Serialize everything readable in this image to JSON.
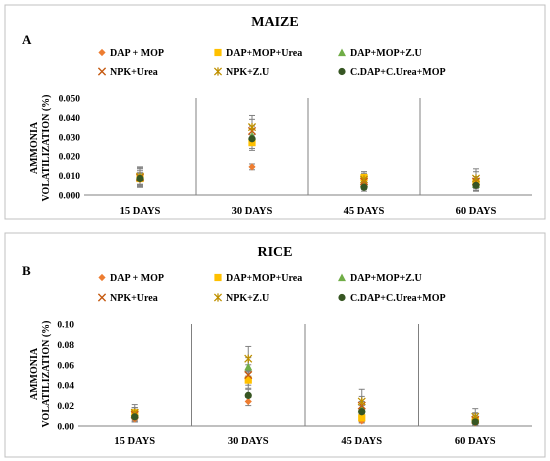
{
  "colors": {
    "DAP + MOP": "#ed7d31",
    "DAP+MOP+Urea": "#ffc000",
    "DAP+MOP+Z.U": "#70ad47",
    "NPK+Urea": "#c55a11",
    "NPK+Z.U": "#bf9000",
    "C.DAP+C.Urea+MOP": "#375623",
    "error_bar": "#808080",
    "frame": "#c0c0c0",
    "divider": "#808080"
  },
  "chart_data": [
    {
      "type": "scatter",
      "panel_letter": "A",
      "title": "MAIZE",
      "ylabel": [
        "AMMONIA",
        "VOLATILIZATION (%)"
      ],
      "categories": [
        "15 DAYS",
        "30 DAYS",
        "45 DAYS",
        "60 DAYS"
      ],
      "ylim": [
        0,
        0.05
      ],
      "yticks": [
        "0.000",
        "0.010",
        "0.020",
        "0.030",
        "0.040",
        "0.050"
      ],
      "legend_position": "top",
      "series": [
        {
          "name": "DAP + MOP",
          "marker": "diamond",
          "values": [
            0.008,
            0.0145,
            0.005,
            0.006
          ],
          "errors": [
            0.003,
            0.0015,
            0.002,
            0.002
          ]
        },
        {
          "name": "DAP+MOP+Urea",
          "marker": "square",
          "values": [
            0.0085,
            0.027,
            0.009,
            0.0065
          ],
          "errors": [
            0.003,
            0.004,
            0.003,
            0.003
          ]
        },
        {
          "name": "DAP+MOP+Z.U",
          "marker": "triangle",
          "values": [
            0.0095,
            0.0305,
            0.006,
            0.0055
          ],
          "errors": [
            0.004,
            0.005,
            0.003,
            0.003
          ]
        },
        {
          "name": "NPK+Urea",
          "marker": "x",
          "values": [
            0.009,
            0.033,
            0.007,
            0.007
          ],
          "errors": [
            0.005,
            0.006,
            0.004,
            0.005
          ]
        },
        {
          "name": "NPK+Z.U",
          "marker": "star",
          "values": [
            0.0095,
            0.035,
            0.008,
            0.0085
          ],
          "errors": [
            0.005,
            0.006,
            0.004,
            0.005
          ]
        },
        {
          "name": "C.DAP+C.Urea+MOP",
          "marker": "circle",
          "values": [
            0.0085,
            0.029,
            0.004,
            0.005
          ],
          "errors": [
            0.004,
            0.005,
            0.002,
            0.003
          ]
        }
      ]
    },
    {
      "type": "scatter",
      "panel_letter": "B",
      "title": "RICE",
      "ylabel": [
        "AMMONIA",
        "VOLATILIZATION (%)"
      ],
      "categories": [
        "15 DAYS",
        "30 DAYS",
        "45 DAYS",
        "60 DAYS"
      ],
      "ylim": [
        0,
        0.1
      ],
      "yticks": [
        "0.00",
        "0.02",
        "0.04",
        "0.06",
        "0.08",
        "0.10"
      ],
      "legend_position": "top",
      "series": [
        {
          "name": "DAP + MOP",
          "marker": "diamond",
          "values": [
            0.007,
            0.024,
            0.005,
            0.003
          ],
          "errors": [
            0.003,
            0.004,
            0.002,
            0.002
          ]
        },
        {
          "name": "DAP+MOP+Urea",
          "marker": "square",
          "values": [
            0.013,
            0.045,
            0.008,
            0.006
          ],
          "errors": [
            0.005,
            0.008,
            0.004,
            0.004
          ]
        },
        {
          "name": "DAP+MOP+Z.U",
          "marker": "triangle",
          "values": [
            0.012,
            0.058,
            0.017,
            0.008
          ],
          "errors": [
            0.006,
            0.009,
            0.007,
            0.005
          ]
        },
        {
          "name": "NPK+Urea",
          "marker": "x",
          "values": [
            0.011,
            0.05,
            0.02,
            0.006
          ],
          "errors": [
            0.007,
            0.01,
            0.009,
            0.006
          ]
        },
        {
          "name": "NPK+Z.U",
          "marker": "star",
          "values": [
            0.013,
            0.066,
            0.024,
            0.009
          ],
          "errors": [
            0.008,
            0.012,
            0.012,
            0.008
          ]
        },
        {
          "name": "C.DAP+C.Urea+MOP",
          "marker": "circle",
          "values": [
            0.009,
            0.03,
            0.014,
            0.004
          ],
          "errors": [
            0.005,
            0.006,
            0.006,
            0.003
          ]
        }
      ]
    }
  ]
}
